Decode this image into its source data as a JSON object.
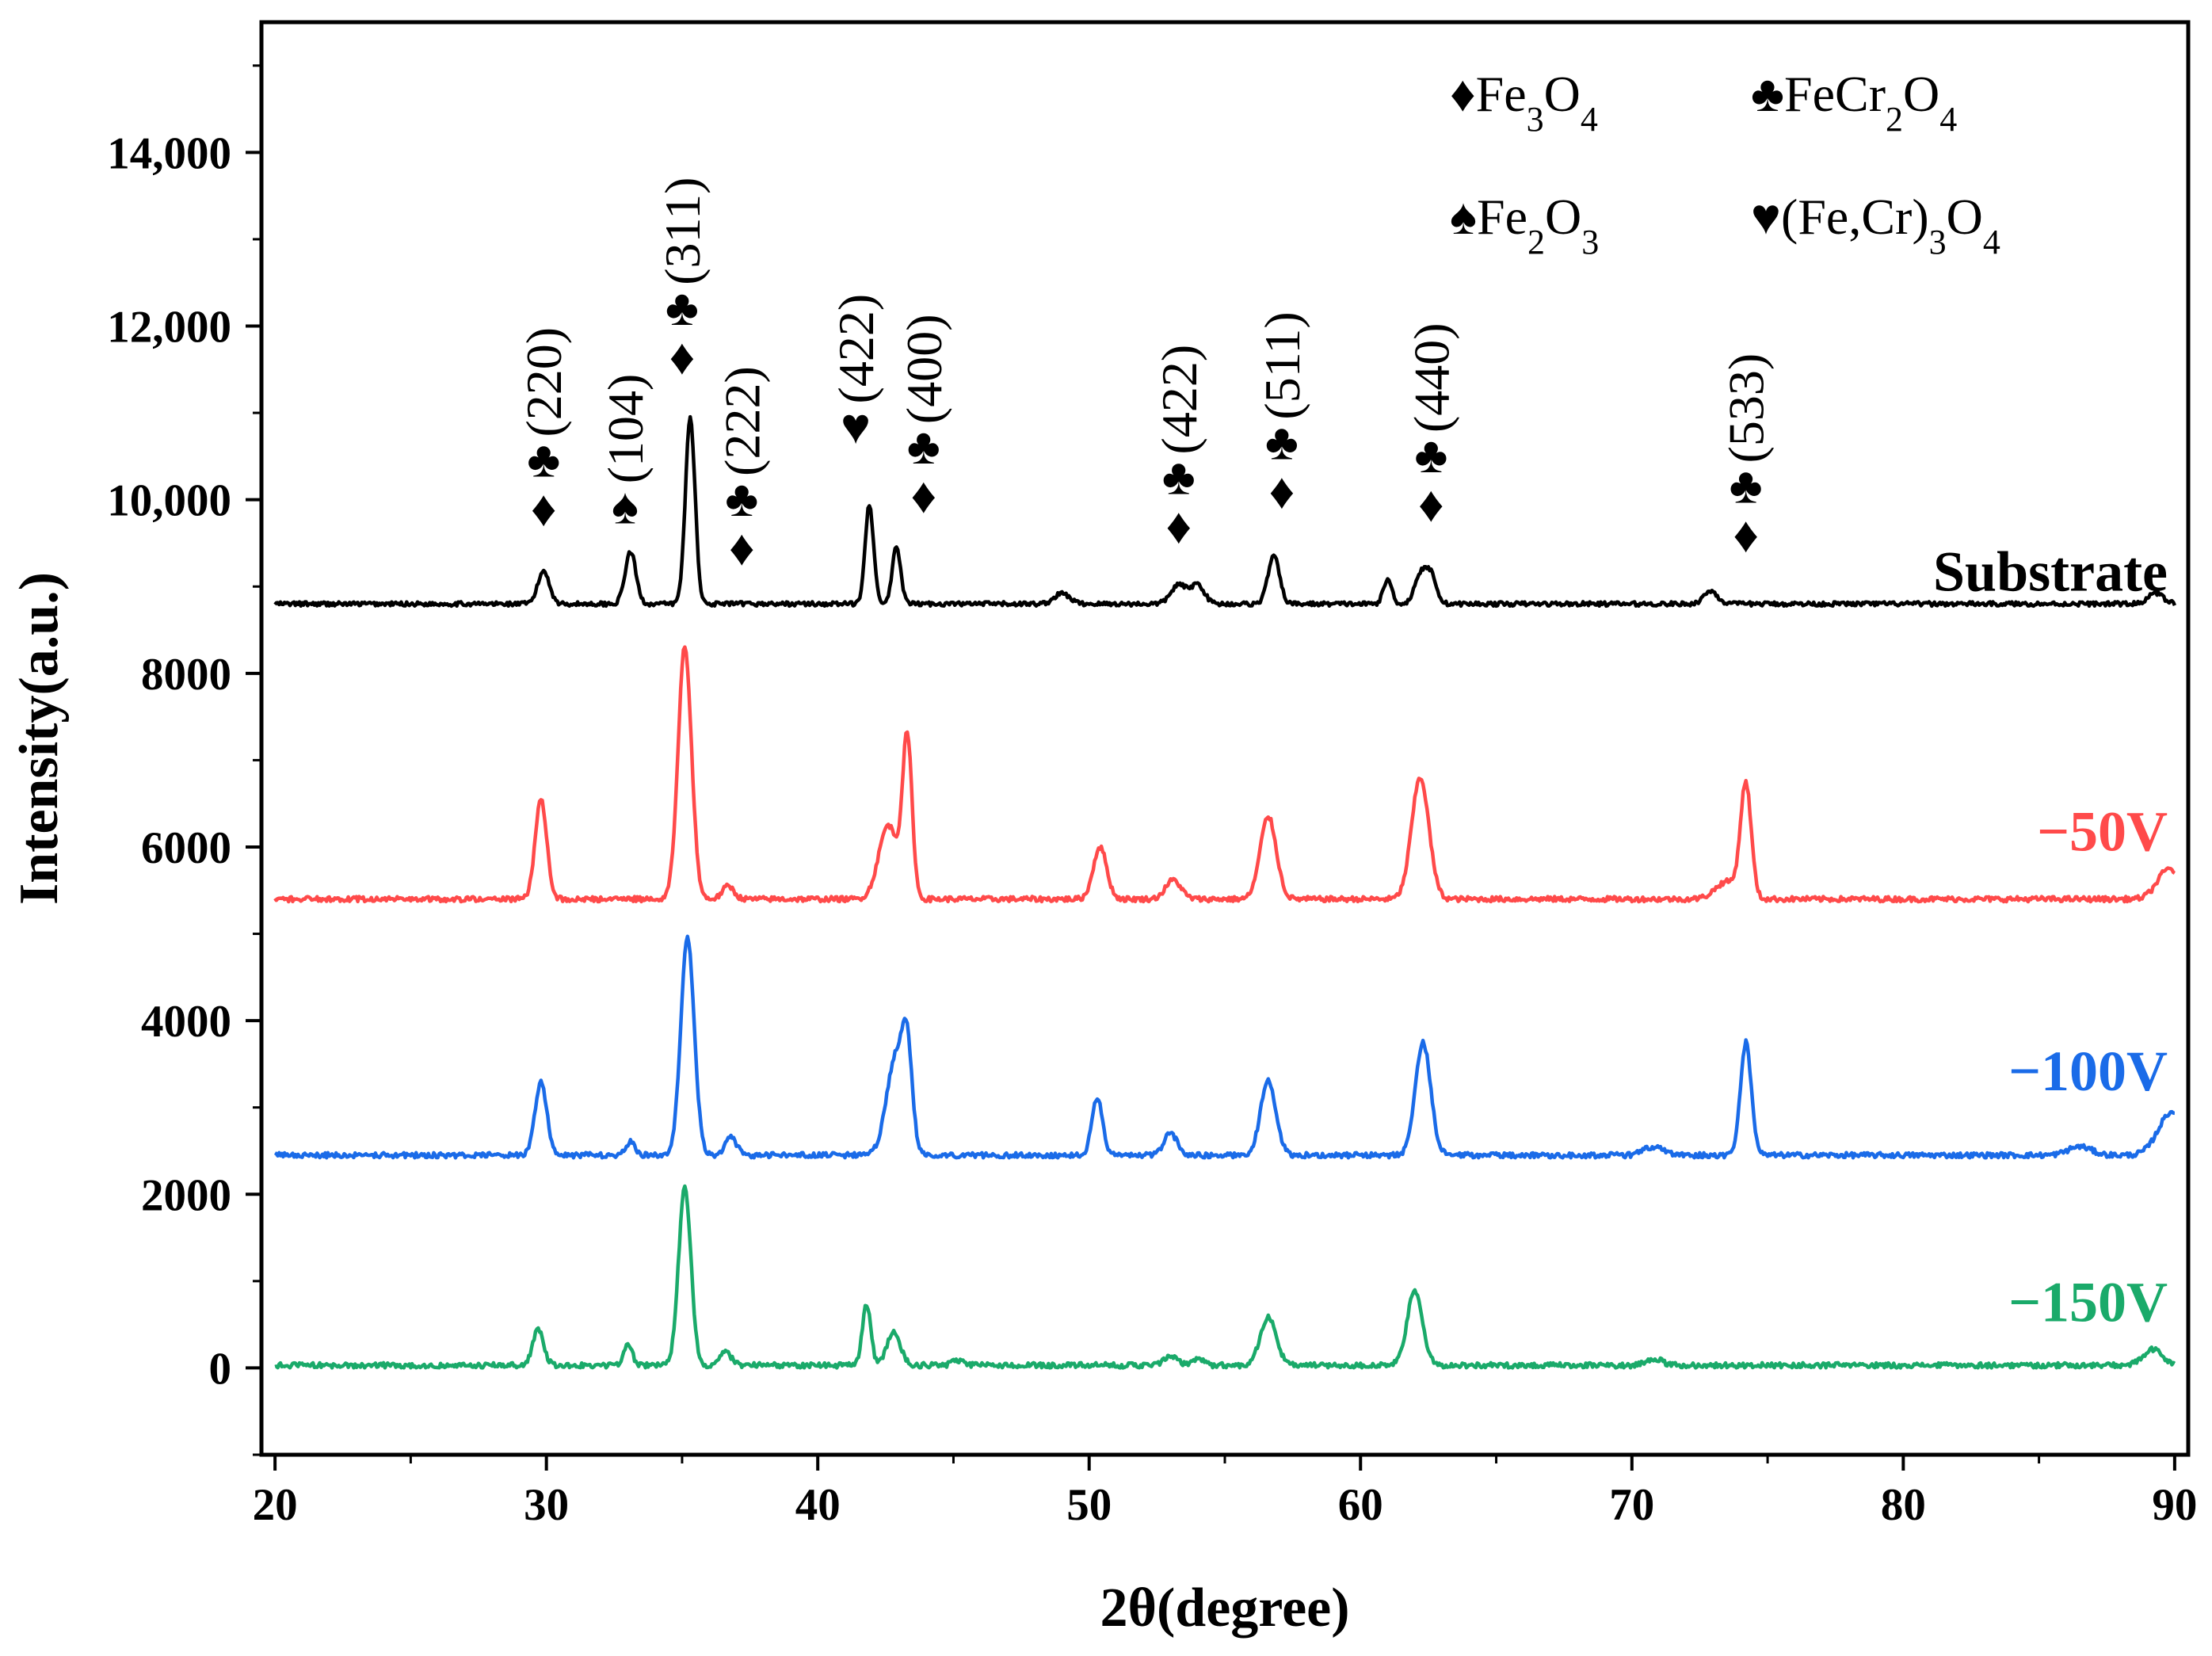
{
  "chart_data": {
    "type": "line",
    "title": "",
    "xlabel": "2θ(degree)",
    "ylabel": "Intensity(a.u.)",
    "xlim": [
      19.5,
      90.5
    ],
    "ylim": [
      -1000,
      15500
    ],
    "xticks": [
      20,
      30,
      40,
      50,
      60,
      70,
      80,
      90
    ],
    "xtick_labels": [
      "20",
      "30",
      "40",
      "50",
      "60",
      "70",
      "80",
      "90"
    ],
    "yticks": [
      0,
      2000,
      4000,
      6000,
      8000,
      10000,
      12000,
      14000
    ],
    "ytick_labels": [
      "0",
      "2000",
      "4000",
      "6000",
      "8000",
      "10,000",
      "12,000",
      "14,000"
    ],
    "legend": [
      {
        "symbol": "♦",
        "label": "Fe3O4",
        "formula": [
          "Fe",
          "3",
          "O",
          "4"
        ]
      },
      {
        "symbol": "♣",
        "label": "FeCr2O4",
        "formula": [
          "FeCr",
          "2",
          "O",
          "4"
        ]
      },
      {
        "symbol": "♠",
        "label": "Fe2O3",
        "formula": [
          "Fe",
          "2",
          "O",
          "3"
        ]
      },
      {
        "symbol": "♥",
        "label": "(Fe,Cr)3O4",
        "formula": [
          "(Fe,Cr)",
          "3",
          "O",
          "4"
        ]
      }
    ],
    "series": [
      {
        "name": "Substrate",
        "color": "#000000",
        "baseline": 8800,
        "noise": 25,
        "peaks": [
          [
            29.9,
            380,
            0.3
          ],
          [
            33.1,
            600,
            0.28
          ],
          [
            35.3,
            2150,
            0.25
          ],
          [
            41.9,
            1150,
            0.22
          ],
          [
            42.9,
            650,
            0.22
          ],
          [
            49.0,
            120,
            0.4
          ],
          [
            53.3,
            220,
            0.4
          ],
          [
            54.0,
            220,
            0.35
          ],
          [
            56.8,
            550,
            0.3
          ],
          [
            61.0,
            280,
            0.22
          ],
          [
            62.2,
            330,
            0.3
          ],
          [
            62.6,
            330,
            0.28
          ],
          [
            72.9,
            150,
            0.35
          ],
          [
            89.3,
            120,
            0.4
          ]
        ]
      },
      {
        "name": "−50V",
        "color": "#ff4a4a",
        "baseline": 5400,
        "noise": 30,
        "peaks": [
          [
            29.8,
            1150,
            0.3
          ],
          [
            35.1,
            2900,
            0.35
          ],
          [
            36.7,
            150,
            0.3
          ],
          [
            42.6,
            850,
            0.5
          ],
          [
            43.3,
            1800,
            0.25
          ],
          [
            50.4,
            600,
            0.35
          ],
          [
            53.1,
            220,
            0.4
          ],
          [
            56.6,
            950,
            0.42
          ],
          [
            62.2,
            1400,
            0.45
          ],
          [
            74.2,
            1300,
            0.28
          ],
          [
            73.5,
            200,
            0.6
          ],
          [
            89.8,
            350,
            0.6
          ]
        ]
      },
      {
        "name": "−100V",
        "color": "#1a6be8",
        "baseline": 2450,
        "noise": 30,
        "peaks": [
          [
            29.8,
            850,
            0.3
          ],
          [
            33.1,
            150,
            0.25
          ],
          [
            35.2,
            2500,
            0.35
          ],
          [
            36.8,
            200,
            0.3
          ],
          [
            42.9,
            1150,
            0.5
          ],
          [
            43.3,
            900,
            0.25
          ],
          [
            50.3,
            650,
            0.28
          ],
          [
            53.0,
            250,
            0.35
          ],
          [
            56.6,
            850,
            0.4
          ],
          [
            62.3,
            1300,
            0.4
          ],
          [
            74.2,
            1300,
            0.28
          ],
          [
            70.8,
            100,
            0.5
          ],
          [
            86.5,
            100,
            0.6
          ],
          [
            89.9,
            500,
            0.7
          ]
        ]
      },
      {
        "name": "−150V",
        "color": "#1aaa6a",
        "baseline": 30,
        "noise": 30,
        "peaks": [
          [
            29.7,
            420,
            0.28
          ],
          [
            33.0,
            250,
            0.22
          ],
          [
            35.1,
            2050,
            0.32
          ],
          [
            36.6,
            150,
            0.3
          ],
          [
            41.8,
            700,
            0.22
          ],
          [
            42.8,
            380,
            0.35
          ],
          [
            45.2,
            60,
            0.3
          ],
          [
            53.0,
            100,
            0.35
          ],
          [
            54.0,
            80,
            0.3
          ],
          [
            56.6,
            550,
            0.42
          ],
          [
            62.0,
            850,
            0.4
          ],
          [
            70.8,
            80,
            0.4
          ],
          [
            89.2,
            180,
            0.5
          ]
        ]
      }
    ],
    "annotations": [
      {
        "x": 29.9,
        "y": 9700,
        "symbols": [
          "♦",
          "♣"
        ],
        "hkl": "(220)"
      },
      {
        "x": 32.9,
        "y": 9730,
        "symbols": [
          "♠"
        ],
        "hkl": "(104)"
      },
      {
        "x": 35.0,
        "y": 11450,
        "symbols": [
          "♦",
          "♣"
        ],
        "hkl": "(311)"
      },
      {
        "x": 37.2,
        "y": 9250,
        "symbols": [
          "♦",
          "♣"
        ],
        "hkl": "(222)"
      },
      {
        "x": 41.4,
        "y": 10650,
        "symbols": [
          "♥"
        ],
        "hkl": "(422)"
      },
      {
        "x": 43.9,
        "y": 9850,
        "symbols": [
          "♦",
          "♣"
        ],
        "hkl": "(400)"
      },
      {
        "x": 53.3,
        "y": 9500,
        "symbols": [
          "♦",
          "♣"
        ],
        "hkl": "(422)"
      },
      {
        "x": 57.1,
        "y": 9900,
        "symbols": [
          "♦",
          "♣"
        ],
        "hkl": "(511)"
      },
      {
        "x": 62.6,
        "y": 9750,
        "symbols": [
          "♦",
          "♣"
        ],
        "hkl": "(440)"
      },
      {
        "x": 74.2,
        "y": 9400,
        "symbols": [
          "♦",
          "♣"
        ],
        "hkl": "(533)"
      }
    ],
    "series_labels": [
      {
        "text": "Substrate",
        "color": "#000000"
      },
      {
        "text": "−50V",
        "color": "#ff4a4a"
      },
      {
        "text": "−100V",
        "color": "#1a6be8"
      },
      {
        "text": "−150V",
        "color": "#1aaa6a"
      }
    ]
  }
}
